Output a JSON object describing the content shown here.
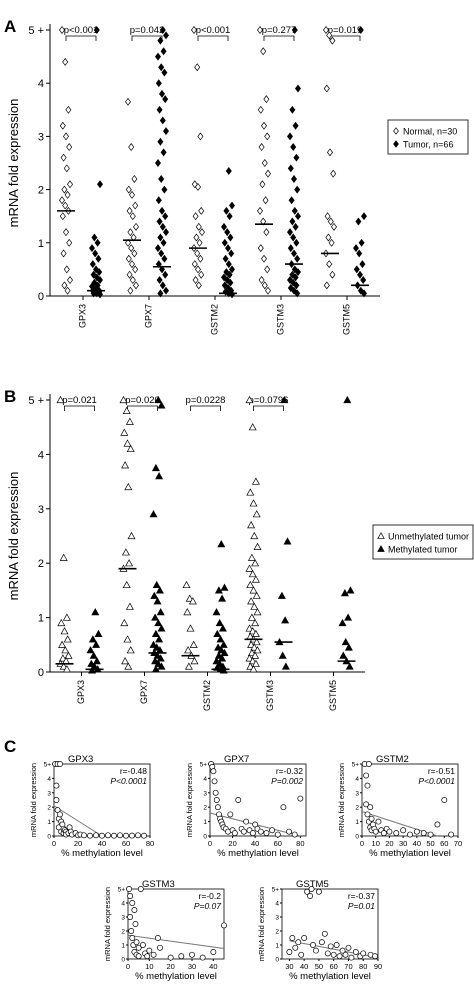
{
  "colors": {
    "ink": "#000000",
    "fit_line": "#777777",
    "background": "#ffffff"
  },
  "marker_names": {
    "open_diamond": "diamond-open",
    "filled_diamond": "diamond-filled",
    "open_triangle": "triangle-open",
    "filled_triangle": "triangle-filled",
    "open_circle": "circle-open"
  },
  "chart_data": [
    {
      "panel": "A",
      "type": "scatter",
      "ylabel": "mRNA fold expression",
      "y_ticks": [
        "0",
        "1",
        "2",
        "3",
        "4",
        "5 +"
      ],
      "ylim": [
        0,
        5
      ],
      "categories": [
        "GPX3",
        "GPX7",
        "GSTM2",
        "GSTM3",
        "GSTM5"
      ],
      "p_values": [
        "p<0.001",
        "p=0.042",
        "p<0.001",
        "p=0.277",
        "p=0.019"
      ],
      "legend": {
        "position": "right",
        "entries": [
          "Normal, n=30",
          "Tumor, n=66"
        ]
      },
      "series": [
        {
          "name": "Normal, n=30",
          "marker": "diamond-open",
          "medians": [
            1.6,
            1.05,
            0.9,
            1.35,
            0.8
          ],
          "values": [
            [
              5.0,
              4.4,
              3.5,
              3.2,
              3.0,
              2.8,
              2.6,
              2.4,
              2.1,
              2.0,
              1.9,
              1.8,
              1.7,
              1.6,
              1.5,
              1.2,
              1.0,
              0.8,
              0.5,
              0.3,
              0.2,
              0.1
            ],
            [
              3.65,
              2.8,
              2.2,
              2.0,
              1.9,
              1.7,
              1.6,
              1.5,
              1.3,
              1.2,
              1.1,
              1.0,
              0.9,
              0.8,
              0.7,
              0.6,
              0.5,
              0.4,
              0.3,
              0.2,
              0.1
            ],
            [
              5.0,
              4.3,
              3.0,
              2.1,
              2.05,
              1.6,
              1.5,
              1.3,
              1.2,
              1.1,
              1.0,
              0.9,
              0.8,
              0.7,
              0.6,
              0.5,
              0.4,
              0.3,
              0.2
            ],
            [
              5.0,
              4.6,
              3.7,
              3.5,
              3.2,
              3.0,
              2.8,
              2.5,
              2.3,
              2.1,
              1.8,
              1.6,
              1.4,
              1.2,
              0.9,
              0.7,
              0.5,
              0.3,
              0.2,
              0.1
            ],
            [
              5.0,
              4.9,
              4.8,
              3.9,
              2.7,
              2.3,
              1.5,
              1.4,
              1.3,
              1.1,
              1.0,
              0.8,
              0.6,
              0.4,
              0.2
            ]
          ]
        },
        {
          "name": "Tumor, n=66",
          "marker": "diamond-filled",
          "medians": [
            0.1,
            0.55,
            0.05,
            0.6,
            0.2
          ],
          "values": [
            [
              5.0,
              2.1,
              1.1,
              1.0,
              0.9,
              0.8,
              0.7,
              0.6,
              0.5,
              0.45,
              0.4,
              0.35,
              0.3,
              0.25,
              0.2,
              0.18,
              0.15,
              0.12,
              0.1,
              0.1,
              0.08,
              0.05,
              0.05,
              0.03
            ],
            [
              5.0,
              4.9,
              4.8,
              4.6,
              4.5,
              4.3,
              4.2,
              4.0,
              3.8,
              3.7,
              3.5,
              3.3,
              3.1,
              2.9,
              2.7,
              2.5,
              2.2,
              2.0,
              1.8,
              1.6,
              1.5,
              1.4,
              1.3,
              1.2,
              1.1,
              1.0,
              0.9,
              0.8,
              0.7,
              0.6,
              0.5,
              0.4,
              0.3,
              0.2,
              0.1,
              0.05
            ],
            [
              2.35,
              1.7,
              1.6,
              1.5,
              1.3,
              1.2,
              1.1,
              1.0,
              0.9,
              0.8,
              0.7,
              0.6,
              0.5,
              0.45,
              0.4,
              0.35,
              0.3,
              0.25,
              0.2,
              0.15,
              0.1,
              0.08,
              0.05,
              0.03
            ],
            [
              5.0,
              3.9,
              3.5,
              3.2,
              3.0,
              2.8,
              2.6,
              2.4,
              2.2,
              2.0,
              1.8,
              1.6,
              1.5,
              1.4,
              1.3,
              1.2,
              1.1,
              1.0,
              0.9,
              0.8,
              0.7,
              0.6,
              0.5,
              0.45,
              0.4,
              0.35,
              0.3,
              0.25,
              0.2,
              0.15,
              0.1,
              0.05
            ],
            [
              5.0,
              1.5,
              1.4,
              1.0,
              0.9,
              0.8,
              0.6,
              0.5,
              0.4,
              0.3,
              0.2,
              0.1,
              0.05
            ]
          ]
        }
      ]
    },
    {
      "panel": "B",
      "type": "scatter",
      "ylabel": "mRNA fold expression",
      "y_ticks": [
        "0",
        "1",
        "2",
        "3",
        "4",
        "5 +"
      ],
      "ylim": [
        0,
        5
      ],
      "categories": [
        "GPX3",
        "GPX7",
        "GSTM2",
        "GSTM3",
        "GSTM5"
      ],
      "p_values": [
        "p=0.021",
        "p=0.020",
        "p=0.0228",
        "p=0.0796",
        ""
      ],
      "legend": {
        "position": "right",
        "entries": [
          "Unmethylated tumor",
          "Methylated tumor"
        ]
      },
      "series": [
        {
          "name": "Unmethylated tumor",
          "marker": "triangle-open",
          "medians": [
            0.15,
            1.9,
            0.3,
            0.6,
            null
          ],
          "values": [
            [
              5.0,
              2.1,
              1.0,
              0.9,
              0.75,
              0.6,
              0.5,
              0.4,
              0.3,
              0.25,
              0.2,
              0.15,
              0.1,
              0.05
            ],
            [
              5.0,
              4.8,
              4.6,
              4.4,
              4.2,
              4.1,
              3.8,
              3.4,
              2.5,
              2.2,
              2.0,
              1.9,
              1.6,
              1.2,
              0.9,
              0.6,
              0.4,
              0.2,
              0.1
            ],
            [
              1.6,
              1.35,
              1.3,
              1.1,
              0.8,
              0.5,
              0.4,
              0.3,
              0.2,
              0.1
            ],
            [
              5.0,
              4.5,
              3.5,
              3.3,
              3.1,
              2.9,
              2.7,
              2.5,
              2.3,
              2.1,
              2.0,
              1.9,
              1.8,
              1.7,
              1.6,
              1.5,
              1.4,
              1.3,
              1.2,
              1.1,
              1.0,
              0.9,
              0.8,
              0.75,
              0.7,
              0.65,
              0.6,
              0.55,
              0.5,
              0.45,
              0.4,
              0.35,
              0.3,
              0.25,
              0.2,
              0.15,
              0.1,
              0.05
            ],
            []
          ]
        },
        {
          "name": "Methylated tumor",
          "marker": "triangle-filled",
          "medians": [
            0.05,
            0.35,
            0.05,
            0.55,
            0.2
          ],
          "values": [
            [
              1.1,
              0.7,
              0.6,
              0.5,
              0.4,
              0.3,
              0.2,
              0.15,
              0.1,
              0.05,
              0.03
            ],
            [
              5.0,
              4.9,
              3.75,
              3.6,
              2.9,
              1.6,
              1.5,
              1.4,
              1.3,
              1.1,
              1.0,
              0.9,
              0.8,
              0.7,
              0.6,
              0.5,
              0.45,
              0.4,
              0.35,
              0.3,
              0.25,
              0.2,
              0.15,
              0.1,
              0.05
            ],
            [
              2.35,
              1.55,
              1.5,
              1.35,
              1.1,
              0.9,
              0.8,
              0.7,
              0.6,
              0.5,
              0.45,
              0.4,
              0.35,
              0.3,
              0.25,
              0.2,
              0.15,
              0.1,
              0.08,
              0.05,
              0.03
            ],
            [
              5.0,
              2.4,
              1.4,
              0.95,
              0.55,
              0.3,
              0.1
            ],
            [
              5.0,
              1.5,
              1.45,
              1.0,
              0.9,
              0.55,
              0.45,
              0.3,
              0.2,
              0.1
            ]
          ]
        }
      ]
    },
    {
      "panel": "C",
      "type": "scatter",
      "subplots": [
        {
          "title": "GPX3",
          "stats": [
            "r=-0.48",
            "P<0.0001"
          ],
          "xlabel": "% methylation level",
          "ylabel": "mRNA fold expression",
          "xlim": [
            0,
            80
          ],
          "x_ticks": [
            0,
            20,
            40,
            60,
            80
          ],
          "y_ticks": [
            "0",
            "1",
            "2",
            "3",
            "4",
            "5+"
          ],
          "fit": [
            [
              0,
              2.1
            ],
            [
              40,
              0
            ]
          ],
          "x": [
            1,
            2,
            2,
            3,
            3,
            4,
            4,
            5,
            5,
            6,
            6,
            7,
            8,
            8,
            9,
            10,
            10,
            12,
            13,
            14,
            15,
            18,
            20,
            22,
            25,
            30,
            35,
            40,
            45,
            50,
            55,
            60,
            65,
            70,
            75
          ],
          "y": [
            5,
            3.5,
            2.5,
            5,
            1.8,
            1.2,
            0.6,
            5,
            1.5,
            1.0,
            0.3,
            0.8,
            0.5,
            0.2,
            0.4,
            0.3,
            0.1,
            0.2,
            0.6,
            0.3,
            0.1,
            0.2,
            0.05,
            0.1,
            0.05,
            0.02,
            0.05,
            0.02,
            0.05,
            0.02,
            0.05,
            0.02,
            0.03,
            0.05,
            0.02
          ]
        },
        {
          "title": "GPX7",
          "stats": [
            "r=-0.32",
            "P=0.002"
          ],
          "xlabel": "% methylation level",
          "ylabel": "mRNA fold expression",
          "xlim": [
            0,
            85
          ],
          "x_ticks": [
            0,
            20,
            40,
            60,
            80
          ],
          "y_ticks": [
            "0",
            "1",
            "2",
            "3",
            "4",
            "5+"
          ],
          "fit": [
            [
              0,
              1.6
            ],
            [
              80,
              0
            ]
          ],
          "x": [
            1,
            2,
            3,
            4,
            5,
            6,
            7,
            8,
            9,
            10,
            11,
            12,
            14,
            16,
            18,
            20,
            22,
            25,
            28,
            30,
            32,
            35,
            38,
            40,
            42,
            45,
            50,
            55,
            60,
            65,
            70,
            75,
            80
          ],
          "y": [
            5,
            4.8,
            4.5,
            3.8,
            3.0,
            2.5,
            2.0,
            1.5,
            1.2,
            1.0,
            0.8,
            0.6,
            0.5,
            0.3,
            1.5,
            0.4,
            0.2,
            2.5,
            0.5,
            0.3,
            1.0,
            0.4,
            0.2,
            0.8,
            0.5,
            0.3,
            0.2,
            0.4,
            0.1,
            2.0,
            0.3,
            0.1,
            2.6
          ]
        },
        {
          "title": "GSTM2",
          "stats": [
            "r=-0.51",
            "P<0.0001"
          ],
          "xlabel": "% methylation level",
          "ylabel": "mRNA fold expression",
          "xlim": [
            0,
            70
          ],
          "x_ticks": [
            0,
            10,
            20,
            30,
            40,
            50,
            60,
            70
          ],
          "y_ticks": [
            "0",
            "1",
            "2",
            "3",
            "4",
            "5+"
          ],
          "fit": [
            [
              0,
              1.7
            ],
            [
              55,
              0
            ]
          ],
          "x": [
            2,
            3,
            3,
            4,
            4,
            5,
            5,
            6,
            6,
            7,
            7,
            8,
            9,
            10,
            12,
            14,
            16,
            18,
            20,
            25,
            30,
            35,
            40,
            45,
            50,
            55,
            60,
            65
          ],
          "y": [
            5,
            4.2,
            2.2,
            3.5,
            1.5,
            5,
            1.0,
            2.0,
            0.6,
            1.2,
            0.4,
            0.8,
            0.5,
            0.3,
            1.0,
            0.4,
            0.2,
            0.5,
            0.3,
            0.2,
            0.4,
            0.1,
            0.3,
            0.2,
            0.1,
            0.8,
            2.5,
            0.1
          ]
        },
        {
          "title": "GSTM3",
          "stats": [
            "r=-0.2",
            "P=0.07"
          ],
          "xlabel": "% methylation level",
          "ylabel": "mRNA fold expression",
          "xlim": [
            0,
            45
          ],
          "x_ticks": [
            0,
            10,
            20,
            30,
            40
          ],
          "y_ticks": [
            "0",
            "1",
            "2",
            "3",
            "4",
            "5+"
          ],
          "fit": [
            [
              0,
              1.7
            ],
            [
              45,
              0.75
            ]
          ],
          "x": [
            0.5,
            1,
            1,
            1.5,
            2,
            2,
            2.5,
            3,
            3,
            3.5,
            4,
            4,
            5,
            5,
            6,
            7,
            8,
            9,
            10,
            12,
            14,
            15,
            20,
            25,
            30,
            35,
            40,
            45
          ],
          "y": [
            5,
            4.5,
            3.0,
            2.0,
            4.0,
            1.5,
            1.0,
            3.5,
            0.5,
            2.5,
            1.2,
            0.3,
            0.8,
            0.2,
            5,
            1.0,
            0.4,
            0.2,
            0.6,
            0.3,
            1.5,
            0.8,
            0.1,
            0.2,
            0.3,
            0.1,
            0.5,
            2.4
          ]
        },
        {
          "title": "GSTM5",
          "stats": [
            "r=-0.37",
            "P=0.01"
          ],
          "xlabel": "% methylation level",
          "ylabel": "mRNA fold expression",
          "xlim": [
            25,
            90
          ],
          "x_ticks": [
            30,
            40,
            50,
            60,
            70,
            80,
            90
          ],
          "y_ticks": [
            "0",
            "1",
            "2",
            "3",
            "4",
            "5+"
          ],
          "fit": [
            [
              30,
              1.3
            ],
            [
              90,
              0.1
            ]
          ],
          "x": [
            30,
            32,
            34,
            36,
            38,
            40,
            42,
            44,
            45,
            46,
            48,
            50,
            52,
            54,
            56,
            58,
            60,
            62,
            64,
            66,
            68,
            70,
            72,
            75,
            78,
            80,
            85,
            88
          ],
          "y": [
            0.5,
            1.5,
            0.8,
            1.2,
            0.3,
            1.5,
            4.8,
            4.5,
            5,
            1.0,
            0.6,
            4.8,
            1.2,
            1.8,
            0.4,
            0.9,
            0.3,
            1.0,
            0.2,
            0.6,
            0.3,
            0.8,
            0.1,
            0.5,
            0.2,
            0.4,
            0.3,
            0.2
          ]
        }
      ]
    }
  ]
}
